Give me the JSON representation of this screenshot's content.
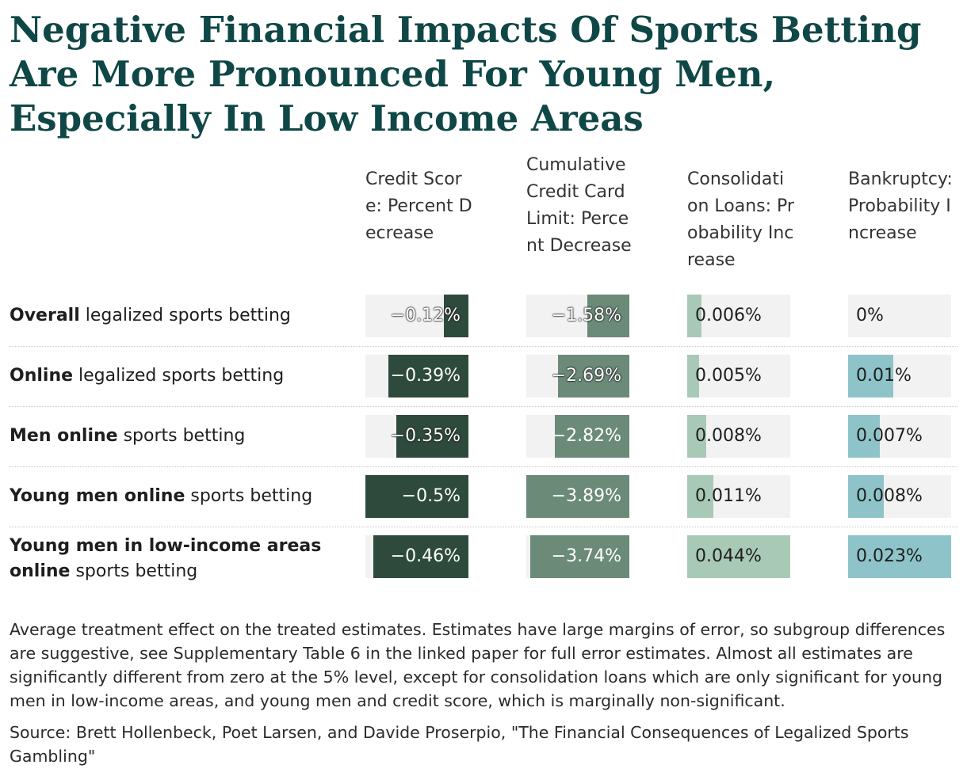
{
  "title": "Negative Financial Impacts Of Sports Betting Are More Pronounced For Young Men, Especially In Low Income Areas",
  "colors": {
    "title": "#0f4746",
    "credit_score": "#2e4a3c",
    "credit_limit": "#6b8a78",
    "consolidation": "#a9c9b7",
    "bankruptcy": "#8ec4c9",
    "cell_bg": "#f2f2f2"
  },
  "chart_data": {
    "type": "table",
    "columns": [
      {
        "key": "credit_score",
        "label": "Credit Score: Percent Decrease",
        "max": 0.5
      },
      {
        "key": "credit_limit",
        "label": "Cumulative Credit Card Limit: Percent Decrease",
        "max": 3.89
      },
      {
        "key": "consolidation",
        "label": "Consolidation Loans: Probability Increase",
        "max": 0.044
      },
      {
        "key": "bankruptcy",
        "label": "Bankruptcy: Probability Increase",
        "max": 0.023
      }
    ],
    "rows": [
      {
        "label_bold": "Overall",
        "label_rest": " legalized sports betting",
        "values": [
          -0.12,
          -1.58,
          0.006,
          0
        ],
        "labels": [
          "−0.12%",
          "−1.58%",
          "0.006%",
          "0%"
        ]
      },
      {
        "label_bold": "Online",
        "label_rest": " legalized sports betting",
        "values": [
          -0.39,
          -2.69,
          0.005,
          0.01
        ],
        "labels": [
          "−0.39%",
          "−2.69%",
          "0.005%",
          "0.01%"
        ]
      },
      {
        "label_bold": "Men online",
        "label_rest": " sports betting",
        "values": [
          -0.35,
          -2.82,
          0.008,
          0.007
        ],
        "labels": [
          "−0.35%",
          "−2.82%",
          "0.008%",
          "0.007%"
        ]
      },
      {
        "label_bold": "Young men online",
        "label_rest": " sports betting",
        "values": [
          -0.5,
          -3.89,
          0.011,
          0.008
        ],
        "labels": [
          "−0.5%",
          "−3.89%",
          "0.011%",
          "0.008%"
        ]
      },
      {
        "label_bold": "Young men in low-income areas online",
        "label_rest": " sports betting",
        "values": [
          -0.46,
          -3.74,
          0.044,
          0.023
        ],
        "labels": [
          "−0.46%",
          "−3.74%",
          "0.044%",
          "0.023%"
        ]
      }
    ]
  },
  "note": "Average treatment effect on the treated estimates. Estimates have large margins of error, so subgroup differences are suggestive, see Supplementary Table 6 in the linked paper for full error estimates. Almost all estimates are significantly different from zero at the 5% level, except for consolidation loans which are only significant for young men in low-income areas, and young men and credit score, which is marginally non-significant.",
  "source": "Source: Brett Hollenbeck, Poet Larsen, and Davide Proserpio, \"The Financial Consequences of Legalized Sports Gambling\""
}
